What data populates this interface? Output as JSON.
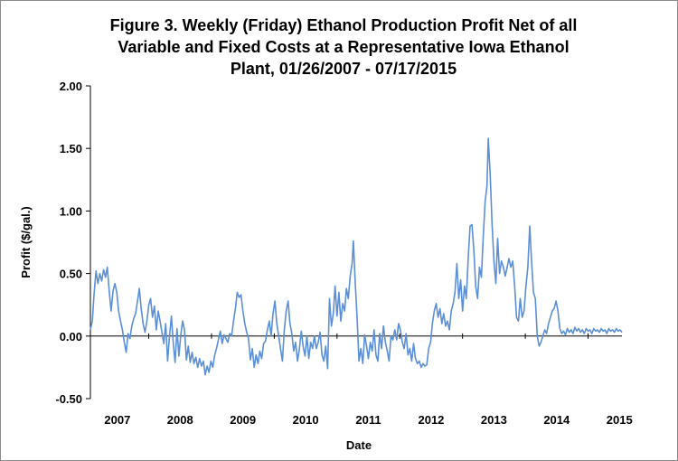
{
  "chart_data": {
    "type": "line",
    "title_lines": [
      "Figure 3. Weekly (Friday) Ethanol Production Profit Net of all",
      "Variable and Fixed Costs at a Representative Iowa Ethanol",
      "Plant, 01/26/2007  - 07/17/2015"
    ],
    "xlabel": "Date",
    "ylabel": "Profit ($/gal.)",
    "ylim": [
      -0.5,
      2.0
    ],
    "y_ticks": [
      "2.00",
      "1.50",
      "1.00",
      "0.50",
      "0.00",
      "-0.50"
    ],
    "x_tick_labels": [
      "2007",
      "2008",
      "2009",
      "2010",
      "2011",
      "2012",
      "2013",
      "2014",
      "2015"
    ],
    "x_start": 2007.07,
    "x_end": 2015.54,
    "line_color": "#5b8fd6",
    "series": [
      {
        "values": [
          [
            2007.07,
            0.05
          ],
          [
            2007.1,
            0.12
          ],
          [
            2007.13,
            0.35
          ],
          [
            2007.16,
            0.52
          ],
          [
            2007.19,
            0.42
          ],
          [
            2007.22,
            0.5
          ],
          [
            2007.25,
            0.44
          ],
          [
            2007.28,
            0.53
          ],
          [
            2007.31,
            0.47
          ],
          [
            2007.34,
            0.55
          ],
          [
            2007.37,
            0.36
          ],
          [
            2007.4,
            0.2
          ],
          [
            2007.43,
            0.36
          ],
          [
            2007.46,
            0.42
          ],
          [
            2007.49,
            0.35
          ],
          [
            2007.52,
            0.2
          ],
          [
            2007.55,
            0.12
          ],
          [
            2007.58,
            0.05
          ],
          [
            2007.61,
            -0.05
          ],
          [
            2007.64,
            -0.13
          ],
          [
            2007.67,
            0.02
          ],
          [
            2007.7,
            -0.02
          ],
          [
            2007.73,
            0.08
          ],
          [
            2007.76,
            0.14
          ],
          [
            2007.79,
            0.18
          ],
          [
            2007.82,
            0.28
          ],
          [
            2007.85,
            0.38
          ],
          [
            2007.88,
            0.22
          ],
          [
            2007.91,
            0.1
          ],
          [
            2007.94,
            0.03
          ],
          [
            2007.97,
            0.12
          ],
          [
            2008.0,
            0.25
          ],
          [
            2008.03,
            0.3
          ],
          [
            2008.06,
            0.15
          ],
          [
            2008.09,
            0.24
          ],
          [
            2008.12,
            0.05
          ],
          [
            2008.15,
            0.2
          ],
          [
            2008.18,
            0.12
          ],
          [
            2008.21,
            0.03
          ],
          [
            2008.24,
            -0.06
          ],
          [
            2008.27,
            0.1
          ],
          [
            2008.3,
            -0.2
          ],
          [
            2008.33,
            0.0
          ],
          [
            2008.36,
            0.16
          ],
          [
            2008.39,
            -0.05
          ],
          [
            2008.42,
            -0.21
          ],
          [
            2008.45,
            0.06
          ],
          [
            2008.48,
            -0.16
          ],
          [
            2008.51,
            0.01
          ],
          [
            2008.54,
            0.12
          ],
          [
            2008.57,
            0.05
          ],
          [
            2008.6,
            -0.19
          ],
          [
            2008.63,
            -0.08
          ],
          [
            2008.66,
            -0.21
          ],
          [
            2008.69,
            -0.13
          ],
          [
            2008.72,
            -0.22
          ],
          [
            2008.75,
            -0.17
          ],
          [
            2008.78,
            -0.25
          ],
          [
            2008.81,
            -0.18
          ],
          [
            2008.84,
            -0.24
          ],
          [
            2008.87,
            -0.2
          ],
          [
            2008.9,
            -0.31
          ],
          [
            2008.93,
            -0.24
          ],
          [
            2008.96,
            -0.29
          ],
          [
            2008.99,
            -0.2
          ],
          [
            2009.02,
            -0.25
          ],
          [
            2009.05,
            -0.15
          ],
          [
            2009.08,
            -0.1
          ],
          [
            2009.11,
            -0.03
          ],
          [
            2009.14,
            0.04
          ],
          [
            2009.17,
            -0.06
          ],
          [
            2009.2,
            0.01
          ],
          [
            2009.23,
            -0.02
          ],
          [
            2009.26,
            -0.05
          ],
          [
            2009.29,
            0.02
          ],
          [
            2009.32,
            0.0
          ],
          [
            2009.35,
            0.12
          ],
          [
            2009.38,
            0.22
          ],
          [
            2009.41,
            0.35
          ],
          [
            2009.44,
            0.31
          ],
          [
            2009.47,
            0.33
          ],
          [
            2009.5,
            0.2
          ],
          [
            2009.53,
            0.1
          ],
          [
            2009.56,
            0.03
          ],
          [
            2009.59,
            -0.02
          ],
          [
            2009.62,
            -0.19
          ],
          [
            2009.65,
            -0.1
          ],
          [
            2009.68,
            -0.25
          ],
          [
            2009.71,
            -0.15
          ],
          [
            2009.74,
            -0.22
          ],
          [
            2009.77,
            -0.12
          ],
          [
            2009.8,
            -0.18
          ],
          [
            2009.83,
            -0.06
          ],
          [
            2009.86,
            -0.04
          ],
          [
            2009.89,
            0.05
          ],
          [
            2009.92,
            0.12
          ],
          [
            2009.95,
            0.0
          ],
          [
            2009.98,
            0.18
          ],
          [
            2010.01,
            0.28
          ],
          [
            2010.04,
            0.1
          ],
          [
            2010.07,
            0.0
          ],
          [
            2010.1,
            -0.1
          ],
          [
            2010.13,
            -0.2
          ],
          [
            2010.16,
            0.05
          ],
          [
            2010.19,
            0.2
          ],
          [
            2010.22,
            0.28
          ],
          [
            2010.25,
            0.1
          ],
          [
            2010.28,
            0.02
          ],
          [
            2010.31,
            -0.12
          ],
          [
            2010.34,
            -0.05
          ],
          [
            2010.37,
            -0.2
          ],
          [
            2010.4,
            -0.1
          ],
          [
            2010.43,
            0.04
          ],
          [
            2010.46,
            -0.08
          ],
          [
            2010.49,
            -0.16
          ],
          [
            2010.52,
            0.0
          ],
          [
            2010.55,
            -0.18
          ],
          [
            2010.58,
            -0.05
          ],
          [
            2010.61,
            -0.1
          ],
          [
            2010.64,
            0.0
          ],
          [
            2010.67,
            -0.1
          ],
          [
            2010.7,
            -0.05
          ],
          [
            2010.73,
            0.03
          ],
          [
            2010.76,
            -0.15
          ],
          [
            2010.79,
            -0.2
          ],
          [
            2010.82,
            -0.08
          ],
          [
            2010.85,
            -0.26
          ],
          [
            2010.88,
            0.3
          ],
          [
            2010.91,
            0.08
          ],
          [
            2010.94,
            0.18
          ],
          [
            2010.97,
            0.4
          ],
          [
            2011.0,
            0.16
          ],
          [
            2011.03,
            0.35
          ],
          [
            2011.06,
            0.12
          ],
          [
            2011.09,
            0.26
          ],
          [
            2011.12,
            0.2
          ],
          [
            2011.15,
            0.38
          ],
          [
            2011.18,
            0.3
          ],
          [
            2011.21,
            0.48
          ],
          [
            2011.24,
            0.58
          ],
          [
            2011.26,
            0.76
          ],
          [
            2011.29,
            0.42
          ],
          [
            2011.32,
            0.15
          ],
          [
            2011.35,
            -0.2
          ],
          [
            2011.38,
            -0.1
          ],
          [
            2011.41,
            -0.22
          ],
          [
            2011.44,
            0.01
          ],
          [
            2011.47,
            -0.08
          ],
          [
            2011.5,
            -0.18
          ],
          [
            2011.53,
            -0.05
          ],
          [
            2011.56,
            -0.12
          ],
          [
            2011.59,
            0.05
          ],
          [
            2011.62,
            -0.15
          ],
          [
            2011.65,
            -0.2
          ],
          [
            2011.68,
            0.02
          ],
          [
            2011.71,
            -0.1
          ],
          [
            2011.74,
            0.08
          ],
          [
            2011.77,
            -0.05
          ],
          [
            2011.8,
            -0.12
          ],
          [
            2011.83,
            -0.2
          ],
          [
            2011.86,
            0.0
          ],
          [
            2011.89,
            -0.03
          ],
          [
            2011.92,
            0.05
          ],
          [
            2011.95,
            -0.03
          ],
          [
            2011.98,
            0.1
          ],
          [
            2012.01,
            0.05
          ],
          [
            2012.04,
            -0.05
          ],
          [
            2012.07,
            -0.1
          ],
          [
            2012.1,
            0.02
          ],
          [
            2012.13,
            -0.15
          ],
          [
            2012.16,
            -0.1
          ],
          [
            2012.19,
            -0.2
          ],
          [
            2012.22,
            -0.06
          ],
          [
            2012.25,
            -0.18
          ],
          [
            2012.28,
            -0.22
          ],
          [
            2012.31,
            -0.2
          ],
          [
            2012.34,
            -0.25
          ],
          [
            2012.37,
            -0.22
          ],
          [
            2012.4,
            -0.24
          ],
          [
            2012.43,
            -0.23
          ],
          [
            2012.46,
            -0.1
          ],
          [
            2012.49,
            -0.05
          ],
          [
            2012.52,
            0.1
          ],
          [
            2012.55,
            0.2
          ],
          [
            2012.58,
            0.26
          ],
          [
            2012.61,
            0.15
          ],
          [
            2012.64,
            0.22
          ],
          [
            2012.67,
            0.1
          ],
          [
            2012.7,
            0.18
          ],
          [
            2012.73,
            0.08
          ],
          [
            2012.76,
            0.12
          ],
          [
            2012.79,
            0.05
          ],
          [
            2012.82,
            0.2
          ],
          [
            2012.85,
            0.26
          ],
          [
            2012.88,
            0.35
          ],
          [
            2012.91,
            0.58
          ],
          [
            2012.94,
            0.3
          ],
          [
            2012.97,
            0.45
          ],
          [
            2013.0,
            0.2
          ],
          [
            2013.03,
            0.4
          ],
          [
            2013.06,
            0.3
          ],
          [
            2013.09,
            0.62
          ],
          [
            2013.12,
            0.88
          ],
          [
            2013.15,
            0.89
          ],
          [
            2013.18,
            0.68
          ],
          [
            2013.21,
            0.4
          ],
          [
            2013.24,
            0.3
          ],
          [
            2013.27,
            0.55
          ],
          [
            2013.3,
            0.47
          ],
          [
            2013.33,
            0.8
          ],
          [
            2013.36,
            1.08
          ],
          [
            2013.39,
            1.2
          ],
          [
            2013.41,
            1.58
          ],
          [
            2013.44,
            1.3
          ],
          [
            2013.47,
            0.9
          ],
          [
            2013.5,
            0.6
          ],
          [
            2013.53,
            0.42
          ],
          [
            2013.56,
            0.78
          ],
          [
            2013.59,
            0.5
          ],
          [
            2013.62,
            0.6
          ],
          [
            2013.65,
            0.55
          ],
          [
            2013.68,
            0.48
          ],
          [
            2013.71,
            0.55
          ],
          [
            2013.74,
            0.62
          ],
          [
            2013.77,
            0.55
          ],
          [
            2013.8,
            0.6
          ],
          [
            2013.83,
            0.4
          ],
          [
            2013.86,
            0.15
          ],
          [
            2013.89,
            0.12
          ],
          [
            2013.92,
            0.3
          ],
          [
            2013.95,
            0.15
          ],
          [
            2013.98,
            0.2
          ],
          [
            2014.01,
            0.4
          ],
          [
            2014.04,
            0.55
          ],
          [
            2014.07,
            0.88
          ],
          [
            2014.1,
            0.6
          ],
          [
            2014.13,
            0.35
          ],
          [
            2014.16,
            0.3
          ],
          [
            2014.19,
            0.0
          ],
          [
            2014.22,
            -0.08
          ],
          [
            2014.25,
            -0.05
          ],
          [
            2014.28,
            0.0
          ],
          [
            2014.31,
            0.05
          ],
          [
            2014.34,
            0.02
          ],
          [
            2014.37,
            0.1
          ],
          [
            2014.4,
            0.15
          ],
          [
            2014.43,
            0.2
          ],
          [
            2014.46,
            0.22
          ],
          [
            2014.49,
            0.28
          ],
          [
            2014.52,
            0.2
          ],
          [
            2014.55,
            0.06
          ],
          [
            2014.58,
            0.02
          ],
          [
            2014.61,
            0.04
          ],
          [
            2014.64,
            0.01
          ],
          [
            2014.67,
            0.06
          ],
          [
            2014.7,
            0.03
          ],
          [
            2014.73,
            0.05
          ],
          [
            2014.76,
            0.02
          ],
          [
            2014.79,
            0.07
          ],
          [
            2014.82,
            0.04
          ],
          [
            2014.85,
            0.06
          ],
          [
            2014.88,
            0.03
          ],
          [
            2014.91,
            0.05
          ],
          [
            2014.94,
            0.02
          ],
          [
            2014.97,
            0.06
          ],
          [
            2015.0,
            0.04
          ],
          [
            2015.03,
            0.05
          ],
          [
            2015.06,
            0.02
          ],
          [
            2015.09,
            0.06
          ],
          [
            2015.12,
            0.04
          ],
          [
            2015.15,
            0.05
          ],
          [
            2015.18,
            0.03
          ],
          [
            2015.21,
            0.06
          ],
          [
            2015.24,
            0.04
          ],
          [
            2015.27,
            0.05
          ],
          [
            2015.3,
            0.02
          ],
          [
            2015.33,
            0.06
          ],
          [
            2015.36,
            0.04
          ],
          [
            2015.39,
            0.05
          ],
          [
            2015.42,
            0.03
          ],
          [
            2015.45,
            0.06
          ],
          [
            2015.48,
            0.04
          ],
          [
            2015.51,
            0.05
          ],
          [
            2015.54,
            0.03
          ]
        ]
      }
    ]
  }
}
